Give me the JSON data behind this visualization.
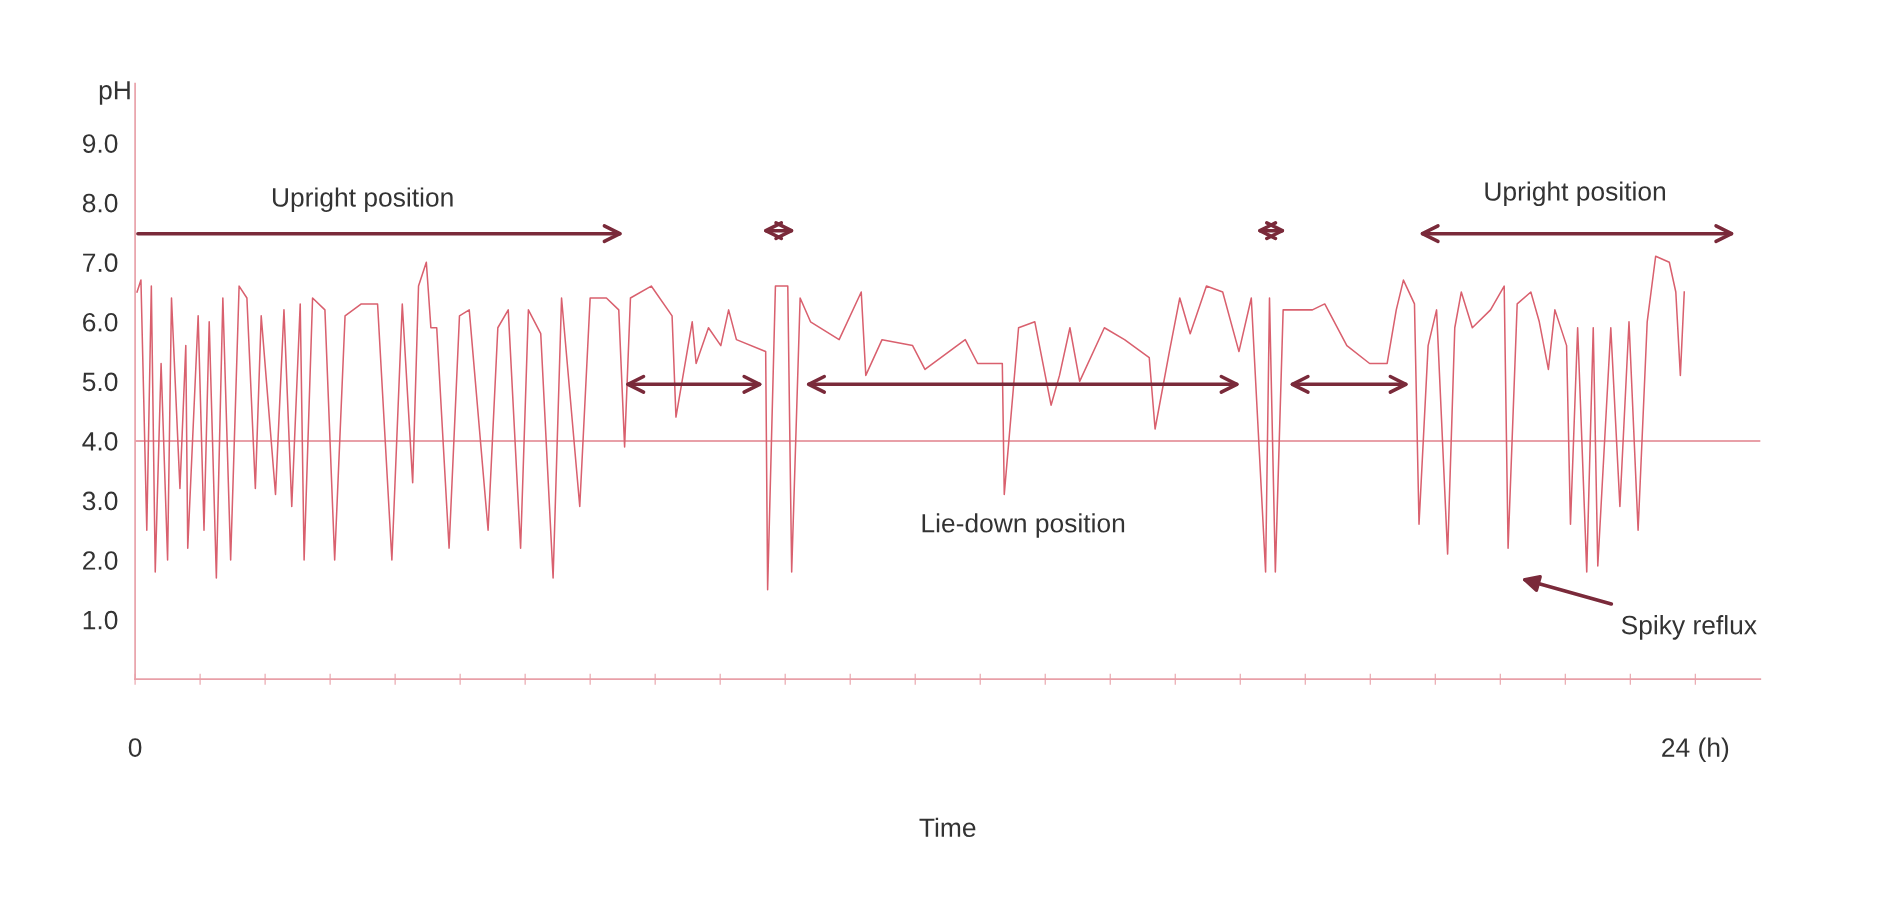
{
  "chart_data": {
    "type": "line",
    "xlabel": "Time",
    "ylabel": "pH",
    "xlim": [
      0,
      25
    ],
    "ylim": [
      0,
      10
    ],
    "xticks": [
      {
        "value": 0,
        "label": "0"
      },
      {
        "value": 1,
        "label": null
      },
      {
        "value": 2,
        "label": null
      },
      {
        "value": 3,
        "label": null
      },
      {
        "value": 4,
        "label": null
      },
      {
        "value": 5,
        "label": null
      },
      {
        "value": 6,
        "label": null
      },
      {
        "value": 7,
        "label": null
      },
      {
        "value": 8,
        "label": null
      },
      {
        "value": 9,
        "label": null
      },
      {
        "value": 10,
        "label": null
      },
      {
        "value": 11,
        "label": null
      },
      {
        "value": 12,
        "label": null
      },
      {
        "value": 13,
        "label": null
      },
      {
        "value": 14,
        "label": null
      },
      {
        "value": 15,
        "label": null
      },
      {
        "value": 16,
        "label": null
      },
      {
        "value": 17,
        "label": null
      },
      {
        "value": 18,
        "label": null
      },
      {
        "value": 19,
        "label": null
      },
      {
        "value": 20,
        "label": null
      },
      {
        "value": 21,
        "label": null
      },
      {
        "value": 22,
        "label": null
      },
      {
        "value": 23,
        "label": null
      },
      {
        "value": 24,
        "label": "24 (h)"
      }
    ],
    "yticks": [
      {
        "value": 1,
        "label": "1.0"
      },
      {
        "value": 2,
        "label": "2.0"
      },
      {
        "value": 3,
        "label": "3.0"
      },
      {
        "value": 4,
        "label": "4.0"
      },
      {
        "value": 5,
        "label": "5.0"
      },
      {
        "value": 6,
        "label": "6.0"
      },
      {
        "value": 7,
        "label": "7.0"
      },
      {
        "value": 8,
        "label": "8.0"
      },
      {
        "value": 9,
        "label": "9.0"
      }
    ],
    "grid": false,
    "marker": "none",
    "line_style": "solid",
    "ref_lines": [
      {
        "axis": "y",
        "value": 4.0,
        "color": "#e8a0a8",
        "line_style": "solid"
      }
    ],
    "annotations": [
      "Upright position",
      "Lie-down position",
      "Upright position",
      "Spiky reflux"
    ],
    "series": [
      {
        "color": "#d9606e",
        "x": [
          0.03,
          0.09,
          0.18,
          0.25,
          0.31,
          0.4,
          0.5,
          0.56,
          0.69,
          0.78,
          0.81,
          0.97,
          1.06,
          1.14,
          1.25,
          1.35,
          1.47,
          1.6,
          1.72,
          1.85,
          1.94,
          2.16,
          2.29,
          2.41,
          2.54,
          2.6,
          2.73,
          2.92,
          3.07,
          3.23,
          3.48,
          3.73,
          3.95,
          4.11,
          4.27,
          4.36,
          4.48,
          4.55,
          4.64,
          4.83,
          4.99,
          5.14,
          5.43,
          5.58,
          5.74,
          5.93,
          6.05,
          6.24,
          6.43,
          6.56,
          6.84,
          7.0,
          7.25,
          7.44,
          7.53,
          7.62,
          7.94,
          8.26,
          8.32,
          8.57,
          8.63,
          8.82,
          9.01,
          9.13,
          9.25,
          9.7,
          9.73,
          9.85,
          10.04,
          10.1,
          10.23,
          10.39,
          10.83,
          11.17,
          11.24,
          11.49,
          11.96,
          12.15,
          12.77,
          12.96,
          13.34,
          13.37,
          13.59,
          13.84,
          14.09,
          14.22,
          14.38,
          14.53,
          14.91,
          15.22,
          15.6,
          15.69,
          15.91,
          16.07,
          16.23,
          16.48,
          16.73,
          16.98,
          17.17,
          17.39,
          17.45,
          17.54,
          17.66,
          18.11,
          18.3,
          18.64,
          18.99,
          19.26,
          19.4,
          19.51,
          19.68,
          19.75,
          19.89,
          20.02,
          20.19,
          20.3,
          20.4,
          20.57,
          20.85,
          21.06,
          21.12,
          21.26,
          21.47,
          21.6,
          21.74,
          21.84,
          22.02,
          22.08,
          22.19,
          22.33,
          22.43,
          22.5,
          22.7,
          22.84,
          22.98,
          23.12,
          23.26,
          23.39,
          23.6,
          23.7,
          23.77,
          23.83
        ],
        "values": [
          6.5,
          6.7,
          2.5,
          6.6,
          1.8,
          5.3,
          2.0,
          6.4,
          3.2,
          5.6,
          2.2,
          6.1,
          2.5,
          6.0,
          1.7,
          6.4,
          2.0,
          6.6,
          6.4,
          3.2,
          6.1,
          3.1,
          6.2,
          2.9,
          6.3,
          2.0,
          6.4,
          6.2,
          2.0,
          6.1,
          6.3,
          6.3,
          2.0,
          6.3,
          3.3,
          6.6,
          7.0,
          5.9,
          5.9,
          2.2,
          6.1,
          6.2,
          2.5,
          5.9,
          6.2,
          2.2,
          6.2,
          5.8,
          1.7,
          6.4,
          2.9,
          6.4,
          6.4,
          6.2,
          3.9,
          6.4,
          6.6,
          6.1,
          4.4,
          6.0,
          5.3,
          5.9,
          5.6,
          6.2,
          5.7,
          5.5,
          1.5,
          6.6,
          6.6,
          1.8,
          6.4,
          6.0,
          5.7,
          6.5,
          5.1,
          5.7,
          5.6,
          5.2,
          5.7,
          5.3,
          5.3,
          3.1,
          5.9,
          6.0,
          4.6,
          5.1,
          5.9,
          5.0,
          5.9,
          5.7,
          5.4,
          4.2,
          5.5,
          6.4,
          5.8,
          6.6,
          6.5,
          5.5,
          6.4,
          1.8,
          6.4,
          1.8,
          6.2,
          6.2,
          6.3,
          5.6,
          5.3,
          5.3,
          6.2,
          6.7,
          6.3,
          2.6,
          5.6,
          6.2,
          2.1,
          5.9,
          6.5,
          5.9,
          6.2,
          6.6,
          2.2,
          6.3,
          6.5,
          6.0,
          5.2,
          6.2,
          5.6,
          2.6,
          5.9,
          1.8,
          5.9,
          1.9,
          5.9,
          2.9,
          6.0,
          2.5,
          6.0,
          7.1,
          7.0,
          6.5,
          5.1,
          6.5
        ]
      }
    ]
  }
}
